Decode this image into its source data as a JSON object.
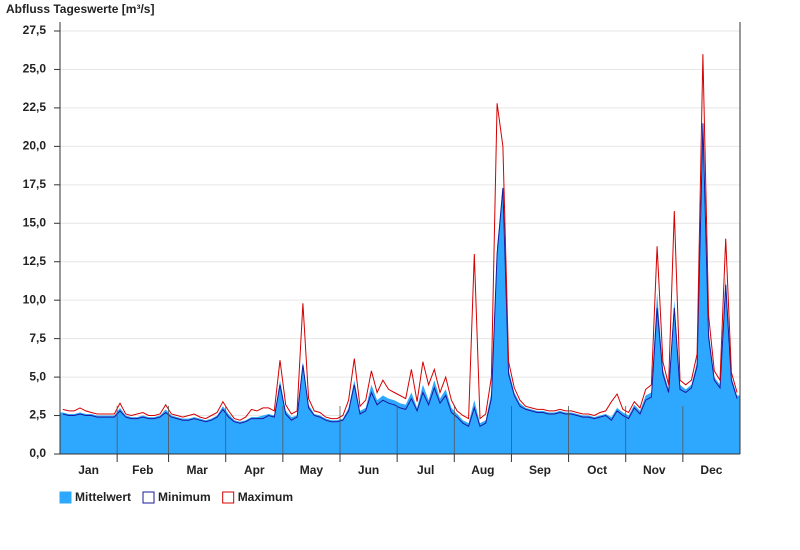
{
  "chart_data": {
    "type": "area",
    "title": "Abfluss Tageswerte [m³/s]",
    "categories": [
      "Jan",
      "Feb",
      "Mar",
      "Apr",
      "May",
      "Jun",
      "Jul",
      "Aug",
      "Sep",
      "Oct",
      "Nov",
      "Dec"
    ],
    "ylim": [
      0,
      27.5
    ],
    "yticks": [
      {
        "value": 0,
        "label": "0,0"
      },
      {
        "value": 2.5,
        "label": "2,5"
      },
      {
        "value": 5,
        "label": "5,0"
      },
      {
        "value": 7.5,
        "label": "7,5"
      },
      {
        "value": 10,
        "label": "10,0"
      },
      {
        "value": 12.5,
        "label": "12,5"
      },
      {
        "value": 15,
        "label": "15,0"
      },
      {
        "value": 17.5,
        "label": "17,5"
      },
      {
        "value": 20,
        "label": "20,0"
      },
      {
        "value": 22.5,
        "label": "22,5"
      },
      {
        "value": 25,
        "label": "25,0"
      },
      {
        "value": 27.5,
        "label": "27,5"
      }
    ],
    "grid": true,
    "series": [
      {
        "name": "Mittelwert",
        "color": "#2ea8ff",
        "values": [
          [
            2.7,
            2.6,
            2.6,
            2.7,
            2.6,
            2.6,
            2.5,
            2.5,
            2.5,
            2.5
          ],
          [
            3.0,
            2.5,
            2.4,
            2.4,
            2.5,
            2.4,
            2.4,
            2.5,
            2.9
          ],
          [
            2.5,
            2.4,
            2.3,
            2.3,
            2.4,
            2.3,
            2.2,
            2.3,
            2.5,
            3.1
          ],
          [
            2.6,
            2.2,
            2.1,
            2.2,
            2.4,
            2.4,
            2.5,
            2.6,
            2.5,
            4.8
          ],
          [
            2.8,
            2.4,
            2.5,
            6.0,
            3.2,
            2.6,
            2.5,
            2.3,
            2.2,
            2.2
          ],
          [
            2.3,
            3.0,
            4.8,
            2.8,
            3.0,
            4.5,
            3.5,
            3.8,
            3.6,
            3.5
          ],
          [
            3.3,
            3.2,
            4.0,
            3.0,
            4.5,
            3.5,
            4.8,
            3.6,
            4.2,
            3.0
          ],
          [
            2.6,
            2.2,
            2.0,
            3.5,
            2.0,
            2.2,
            4.0,
            13.5,
            17.0,
            5.5
          ],
          [
            4.0,
            3.3,
            3.0,
            2.9,
            2.8,
            2.8,
            2.7,
            2.7,
            2.8,
            2.7
          ],
          [
            2.7,
            2.6,
            2.5,
            2.5,
            2.4,
            2.5,
            2.6,
            2.4,
            3.0,
            2.7
          ],
          [
            2.5,
            3.2,
            2.8,
            3.8,
            4.0,
            10.5,
            5.5,
            4.2,
            10.0,
            4.5
          ],
          [
            4.2,
            4.5,
            6.0,
            21.0,
            8.0,
            5.0,
            4.5,
            11.5,
            5.0,
            3.8
          ]
        ]
      },
      {
        "name": "Minimum",
        "color": "#1a1a9a",
        "values": [
          [
            2.6,
            2.5,
            2.5,
            2.6,
            2.5,
            2.5,
            2.4,
            2.4,
            2.4,
            2.4
          ],
          [
            2.8,
            2.4,
            2.3,
            2.3,
            2.4,
            2.3,
            2.3,
            2.4,
            2.7
          ],
          [
            2.4,
            2.3,
            2.2,
            2.2,
            2.3,
            2.2,
            2.1,
            2.2,
            2.4,
            2.9
          ],
          [
            2.4,
            2.1,
            2.0,
            2.1,
            2.3,
            2.3,
            2.3,
            2.5,
            2.4,
            4.5
          ],
          [
            2.6,
            2.2,
            2.4,
            5.8,
            3.0,
            2.5,
            2.4,
            2.2,
            2.1,
            2.1
          ],
          [
            2.2,
            2.8,
            4.5,
            2.6,
            2.8,
            4.0,
            3.2,
            3.5,
            3.3,
            3.2
          ],
          [
            3.0,
            2.9,
            3.6,
            2.8,
            4.0,
            3.2,
            4.3,
            3.3,
            3.8,
            2.7
          ],
          [
            2.4,
            2.0,
            1.8,
            3.0,
            1.8,
            2.0,
            3.6,
            13.0,
            17.3,
            5.2
          ],
          [
            3.8,
            3.1,
            2.9,
            2.8,
            2.7,
            2.7,
            2.6,
            2.6,
            2.7,
            2.6
          ],
          [
            2.6,
            2.5,
            2.4,
            2.4,
            2.3,
            2.4,
            2.5,
            2.2,
            2.8,
            2.5
          ],
          [
            2.3,
            3.0,
            2.6,
            3.5,
            3.7,
            9.5,
            5.2,
            4.0,
            9.5,
            4.2
          ],
          [
            4.0,
            4.3,
            5.7,
            21.5,
            7.6,
            4.8,
            4.3,
            11.0,
            4.8,
            3.6
          ]
        ]
      },
      {
        "name": "Maximum",
        "color": "#d40000",
        "values": [
          [
            2.9,
            2.8,
            2.8,
            3.0,
            2.8,
            2.7,
            2.6,
            2.6,
            2.6,
            2.6
          ],
          [
            3.3,
            2.6,
            2.5,
            2.6,
            2.7,
            2.5,
            2.5,
            2.6,
            3.2
          ],
          [
            2.6,
            2.5,
            2.4,
            2.5,
            2.6,
            2.4,
            2.3,
            2.5,
            2.7,
            3.4
          ],
          [
            2.8,
            2.3,
            2.2,
            2.4,
            2.9,
            2.8,
            3.0,
            3.0,
            2.8,
            6.1
          ],
          [
            3.2,
            2.6,
            2.8,
            9.8,
            3.6,
            2.8,
            2.7,
            2.4,
            2.3,
            2.3
          ],
          [
            2.5,
            3.5,
            6.2,
            3.1,
            3.5,
            5.4,
            4.0,
            4.8,
            4.2,
            4.0
          ],
          [
            3.8,
            3.6,
            5.5,
            3.4,
            6.0,
            4.5,
            5.5,
            4.0,
            5.0,
            3.5
          ],
          [
            2.8,
            2.5,
            2.3,
            13.0,
            2.3,
            2.6,
            5.0,
            22.8,
            20.0,
            6.0
          ],
          [
            4.3,
            3.5,
            3.1,
            3.0,
            2.9,
            2.9,
            2.8,
            2.8,
            2.9,
            2.8
          ],
          [
            2.8,
            2.7,
            2.6,
            2.6,
            2.5,
            2.7,
            2.8,
            3.4,
            3.9,
            2.9
          ],
          [
            2.7,
            3.4,
            3.0,
            4.2,
            4.5,
            13.5,
            6.0,
            4.5,
            15.8,
            4.8
          ],
          [
            4.5,
            4.8,
            6.5,
            26.0,
            9.0,
            5.4,
            4.8,
            14.0,
            5.3,
            4.0
          ]
        ]
      }
    ]
  }
}
